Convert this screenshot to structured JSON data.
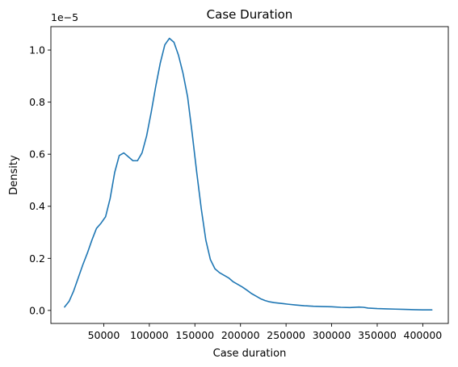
{
  "chart_data": {
    "type": "line",
    "title": "Case Duration",
    "xlabel": "Case duration",
    "ylabel": "Density",
    "y_offset_label": "1e−5",
    "y_scale_factor": 1e-05,
    "xlim": [
      -8000,
      428000
    ],
    "ylim": [
      -0.05,
      1.09
    ],
    "xticks": [
      50000,
      100000,
      150000,
      200000,
      250000,
      300000,
      350000,
      400000
    ],
    "xtick_labels": [
      "50000",
      "100000",
      "150000",
      "200000",
      "250000",
      "300000",
      "350000",
      "400000"
    ],
    "yticks": [
      0.0,
      0.2,
      0.4,
      0.6,
      0.8,
      1.0
    ],
    "ytick_labels": [
      "0.0",
      "0.2",
      "0.4",
      "0.6",
      "0.8",
      "1.0"
    ],
    "grid": false,
    "legend": "none",
    "series": [
      {
        "color": "#1f77b4",
        "x": [
          7000,
          12000,
          17000,
          22000,
          27000,
          32000,
          37000,
          42000,
          47000,
          52000,
          57000,
          62000,
          67000,
          72000,
          77000,
          82000,
          87000,
          92000,
          97000,
          102000,
          107000,
          112000,
          117000,
          122000,
          127000,
          132000,
          137000,
          142000,
          147000,
          152000,
          157000,
          162000,
          167000,
          172000,
          177000,
          182000,
          187000,
          192000,
          197000,
          202000,
          207000,
          212000,
          217000,
          222000,
          227000,
          232000,
          237000,
          242000,
          247000,
          252000,
          260000,
          270000,
          280000,
          290000,
          300000,
          310000,
          320000,
          330000,
          335000,
          340000,
          350000,
          360000,
          370000,
          380000,
          390000,
          400000,
          410000
        ],
        "y": [
          0.013,
          0.035,
          0.075,
          0.125,
          0.175,
          0.22,
          0.27,
          0.315,
          0.335,
          0.36,
          0.43,
          0.53,
          0.595,
          0.605,
          0.59,
          0.575,
          0.575,
          0.605,
          0.67,
          0.76,
          0.86,
          0.95,
          1.02,
          1.045,
          1.03,
          0.98,
          0.91,
          0.82,
          0.68,
          0.53,
          0.39,
          0.27,
          0.195,
          0.16,
          0.145,
          0.135,
          0.125,
          0.11,
          0.1,
          0.09,
          0.078,
          0.065,
          0.055,
          0.045,
          0.038,
          0.033,
          0.03,
          0.028,
          0.026,
          0.024,
          0.021,
          0.018,
          0.016,
          0.015,
          0.014,
          0.012,
          0.011,
          0.013,
          0.012,
          0.009,
          0.007,
          0.006,
          0.005,
          0.004,
          0.003,
          0.002,
          0.002
        ]
      }
    ]
  }
}
